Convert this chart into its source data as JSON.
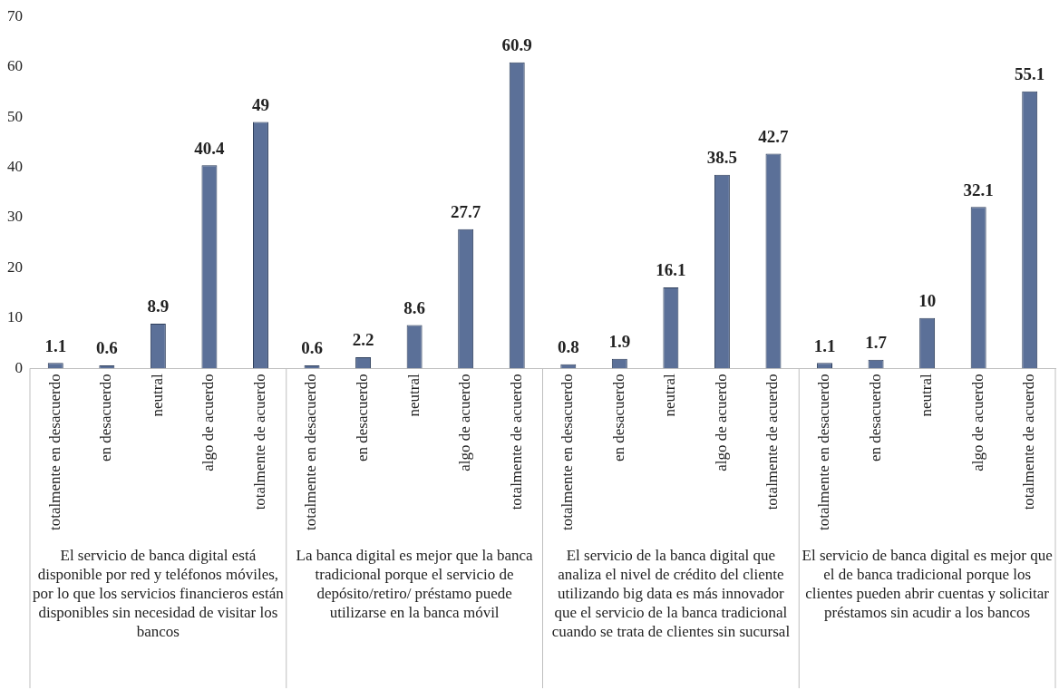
{
  "chart_data": {
    "type": "bar",
    "categories": [
      "totalmente en desacuerdo",
      "en desacuerdo",
      "neutral",
      "algo de acuerdo",
      "totalmente de acuerdo",
      "totalmente en desacuerdo",
      "en desacuerdo",
      "neutral",
      "algo de acuerdo",
      "totalmente de acuerdo",
      "totalmente en desacuerdo",
      "en desacuerdo",
      "neutral",
      "algo de acuerdo",
      "totalmente de acuerdo",
      "totalmente en desacuerdo",
      "en desacuerdo",
      "neutral",
      "algo de acuerdo",
      "totalmente de acuerdo"
    ],
    "values": [
      1.1,
      0.6,
      8.9,
      40.4,
      49,
      0.6,
      2.2,
      8.6,
      27.7,
      60.9,
      0.8,
      1.9,
      16.1,
      38.5,
      42.7,
      1.1,
      1.7,
      10,
      32.1,
      55.1
    ],
    "color": "#5b7098",
    "ylim": [
      0,
      70
    ],
    "yticks": [
      0,
      10,
      20,
      30,
      40,
      50,
      60,
      70
    ],
    "data_labels": true,
    "annotations": [
      "El servicio de banca digital está disponible por red y teléfonos móviles, por lo que los servicios financieros están disponibles sin necesidad de visitar los bancos",
      "La banca digital es mejor que la banca tradicional porque el servicio de depósito/retiro/ préstamo puede utilizarse en la banca móvil",
      "El servicio de la banca digital que analiza el nivel de crédito del cliente utilizando big data es más innovador que el servicio de la banca tradicional cuando se trata de clientes sin sucursal",
      "El servicio de banca digital es mejor que el de banca tradicional porque los clientes pueden abrir cuentas y solicitar préstamos sin acudir a los bancos"
    ]
  }
}
